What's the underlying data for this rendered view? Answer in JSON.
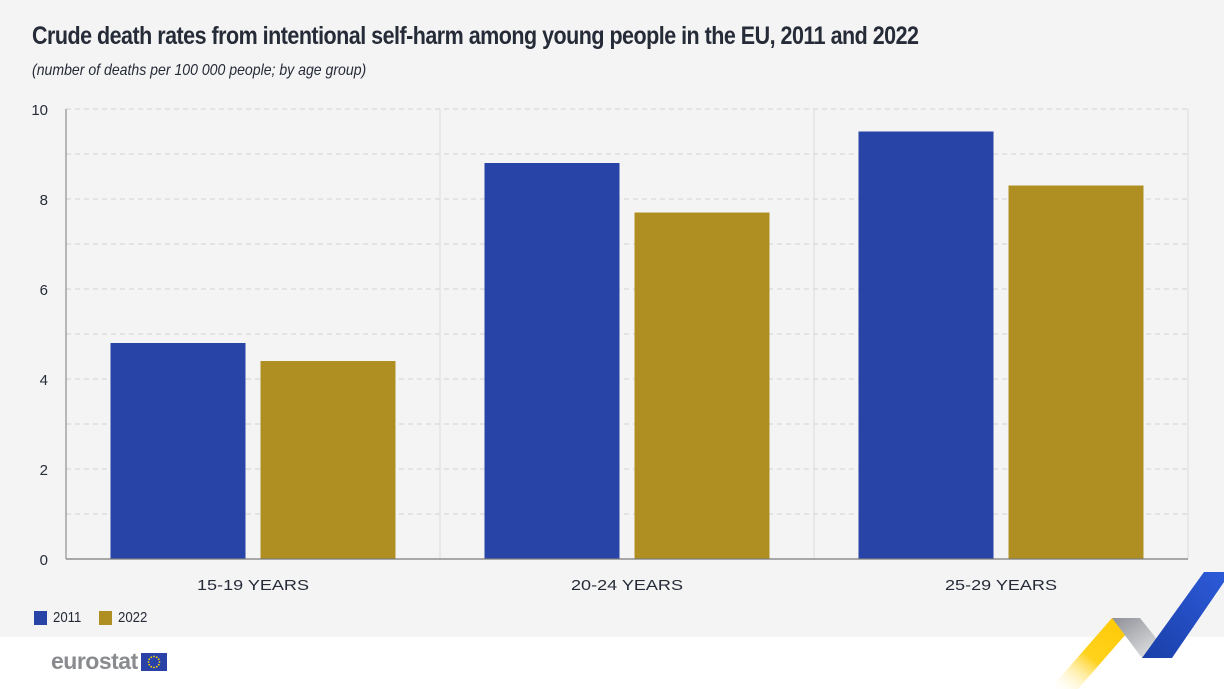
{
  "header": {
    "title": "Crude death rates from intentional self-harm among young people in the EU, 2011 and 2022",
    "subtitle": "(number of deaths per 100 000 people; by age group)"
  },
  "chart_data": {
    "type": "bar",
    "title": "Crude death rates from intentional self-harm among young people in the EU, 2011 and 2022",
    "subtitle": "(number of deaths per 100 000 people; by age group)",
    "xlabel": "",
    "ylabel": "",
    "categories": [
      "15-19 YEARS",
      "20-24 YEARS",
      "25-29 YEARS"
    ],
    "series": [
      {
        "name": "2011",
        "color": "#2744a6",
        "values": [
          4.8,
          8.8,
          9.5
        ]
      },
      {
        "name": "2022",
        "color": "#b08f22",
        "values": [
          4.4,
          7.7,
          8.3
        ]
      }
    ],
    "ylim": [
      0,
      10
    ],
    "yticks": [
      0,
      2,
      4,
      6,
      8,
      10
    ],
    "ytick_labels": [
      "0",
      "2",
      "4",
      "6",
      "8",
      "10"
    ],
    "grid": true,
    "legend_position": "bottom-left"
  },
  "legend": {
    "items": [
      {
        "label": "2011",
        "color": "#2744a6"
      },
      {
        "label": "2022",
        "color": "#b08f22"
      }
    ]
  },
  "footer": {
    "logo_text": "eurostat"
  }
}
